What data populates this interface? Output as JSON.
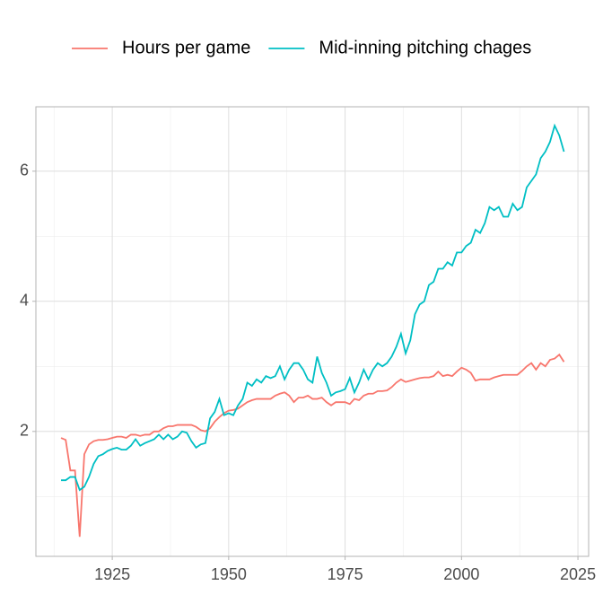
{
  "chart_data": {
    "type": "line",
    "x": [
      1914,
      1915,
      1916,
      1917,
      1918,
      1919,
      1920,
      1921,
      1922,
      1923,
      1924,
      1925,
      1926,
      1927,
      1928,
      1929,
      1930,
      1931,
      1932,
      1933,
      1934,
      1935,
      1936,
      1937,
      1938,
      1939,
      1940,
      1941,
      1942,
      1943,
      1944,
      1945,
      1946,
      1947,
      1948,
      1949,
      1950,
      1951,
      1952,
      1953,
      1954,
      1955,
      1956,
      1957,
      1958,
      1959,
      1960,
      1961,
      1962,
      1963,
      1964,
      1965,
      1966,
      1967,
      1968,
      1969,
      1970,
      1971,
      1972,
      1973,
      1974,
      1975,
      1976,
      1977,
      1978,
      1979,
      1980,
      1981,
      1982,
      1983,
      1984,
      1985,
      1986,
      1987,
      1988,
      1989,
      1990,
      1991,
      1992,
      1993,
      1994,
      1995,
      1996,
      1997,
      1998,
      1999,
      2000,
      2001,
      2002,
      2003,
      2004,
      2005,
      2006,
      2007,
      2008,
      2009,
      2010,
      2011,
      2012,
      2013,
      2014,
      2015,
      2016,
      2017,
      2018,
      2019,
      2020,
      2021,
      2022
    ],
    "series": [
      {
        "name": "Hours per game",
        "color": "#f8766d",
        "values": [
          1.9,
          1.87,
          1.4,
          1.4,
          0.38,
          1.65,
          1.8,
          1.85,
          1.87,
          1.87,
          1.88,
          1.9,
          1.92,
          1.92,
          1.9,
          1.95,
          1.95,
          1.93,
          1.95,
          1.95,
          2.0,
          2.0,
          2.05,
          2.08,
          2.08,
          2.1,
          2.1,
          2.1,
          2.1,
          2.07,
          2.02,
          2.0,
          2.05,
          2.15,
          2.22,
          2.28,
          2.32,
          2.33,
          2.35,
          2.4,
          2.45,
          2.48,
          2.5,
          2.5,
          2.5,
          2.5,
          2.55,
          2.58,
          2.6,
          2.55,
          2.45,
          2.52,
          2.52,
          2.55,
          2.5,
          2.5,
          2.52,
          2.45,
          2.4,
          2.45,
          2.45,
          2.45,
          2.42,
          2.5,
          2.48,
          2.55,
          2.58,
          2.58,
          2.62,
          2.62,
          2.63,
          2.68,
          2.75,
          2.8,
          2.76,
          2.78,
          2.8,
          2.82,
          2.83,
          2.83,
          2.85,
          2.92,
          2.85,
          2.87,
          2.85,
          2.92,
          2.98,
          2.95,
          2.9,
          2.78,
          2.8,
          2.8,
          2.8,
          2.83,
          2.85,
          2.87,
          2.87,
          2.87,
          2.87,
          2.93,
          3.0,
          3.05,
          2.95,
          3.05,
          3.0,
          3.1,
          3.12,
          3.18,
          3.07
        ]
      },
      {
        "name": "Mid-inning pitching chages",
        "color": "#00bfc4",
        "values": [
          1.25,
          1.25,
          1.3,
          1.3,
          1.1,
          1.15,
          1.3,
          1.5,
          1.62,
          1.65,
          1.7,
          1.73,
          1.75,
          1.72,
          1.72,
          1.78,
          1.88,
          1.78,
          1.82,
          1.85,
          1.88,
          1.95,
          1.88,
          1.95,
          1.88,
          1.92,
          2.0,
          1.98,
          1.85,
          1.75,
          1.8,
          1.82,
          2.2,
          2.3,
          2.5,
          2.25,
          2.28,
          2.25,
          2.4,
          2.5,
          2.75,
          2.7,
          2.8,
          2.75,
          2.85,
          2.82,
          2.85,
          3.0,
          2.8,
          2.95,
          3.05,
          3.05,
          2.95,
          2.8,
          2.75,
          3.15,
          2.9,
          2.75,
          2.55,
          2.6,
          2.62,
          2.65,
          2.82,
          2.6,
          2.75,
          2.95,
          2.8,
          2.95,
          3.05,
          3.0,
          3.05,
          3.15,
          3.3,
          3.5,
          3.2,
          3.4,
          3.8,
          3.95,
          4.0,
          4.25,
          4.3,
          4.5,
          4.5,
          4.6,
          4.55,
          4.75,
          4.75,
          4.85,
          4.9,
          5.1,
          5.05,
          5.2,
          5.45,
          5.4,
          5.45,
          5.3,
          5.3,
          5.5,
          5.4,
          5.45,
          5.75,
          5.85,
          5.95,
          6.2,
          6.3,
          6.45,
          6.7,
          6.55,
          6.3
        ]
      }
    ],
    "xlim": [
      1908.6,
      2027.3
    ],
    "xticks": [
      1925,
      1950,
      1975,
      2000,
      2025
    ],
    "minor_xticks": [
      1912.5,
      1937.5,
      1962.5,
      1987.5,
      2012.5
    ],
    "ylim": [
      0.08,
      6.99
    ],
    "yticks": [
      2,
      4,
      6
    ],
    "minor_yticks": [
      1,
      3,
      5
    ],
    "grid": true,
    "legend": "top"
  }
}
